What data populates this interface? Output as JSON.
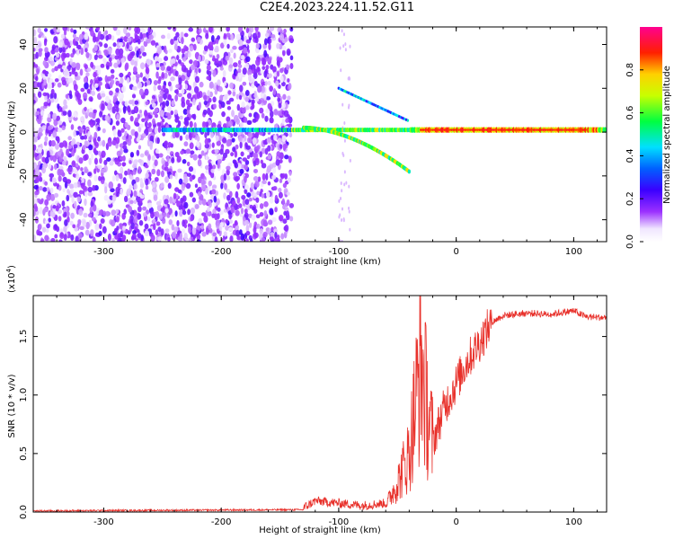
{
  "title": "C2E4.2023.224.11.52.G11",
  "chart_data": [
    {
      "type": "heatmap",
      "xlabel": "Height of straight line (km)",
      "ylabel": "Frequency (Hz)",
      "xlim": [
        -360,
        128
      ],
      "ylim": [
        -50,
        48
      ],
      "xticks": [
        -300,
        -200,
        -100,
        0,
        100
      ],
      "yticks": [
        -40,
        -20,
        0,
        20,
        40
      ],
      "colorbar": {
        "label": "Normalized spectral amplitude",
        "range": [
          0.0,
          1.0
        ],
        "ticks": [
          "0.0",
          "0.2",
          "0.4",
          "0.6",
          "0.8"
        ],
        "colormap": "rainbow (white-violet-blue-cyan-green-yellow-red-pink)"
      },
      "features": [
        {
          "name": "noise band",
          "x_range": [
            -360,
            -140
          ],
          "amplitude": 0.1
        },
        {
          "name": "carrier line",
          "x_range": [
            -250,
            128
          ],
          "frequency": 1,
          "amplitude": [
            0.5,
            0.95
          ]
        },
        {
          "name": "descending branch",
          "x_range": [
            -130,
            -40
          ],
          "frequency": [
            2,
            -18
          ],
          "amplitude": 0.6
        },
        {
          "name": "ascending branch",
          "x_range": [
            -100,
            -40
          ],
          "frequency": [
            20,
            5
          ],
          "amplitude": 0.3
        }
      ]
    },
    {
      "type": "line",
      "xlabel": "Height of straight line (km)",
      "ylabel": "SNR (10 * v/v)",
      "yscale_label": "(x10",
      "yscale_exp": "4",
      "yscale_close": ")",
      "xlim": [
        -360,
        128
      ],
      "ylim": [
        0.0,
        1.85
      ],
      "xticks": [
        -300,
        -200,
        -100,
        0,
        100
      ],
      "yticks": [
        "0.0",
        "0.5",
        "1.0",
        "1.5"
      ],
      "color": "#e8302a",
      "series_points": [
        [
          -360,
          0.01
        ],
        [
          -130,
          0.02
        ],
        [
          -120,
          0.08
        ],
        [
          -100,
          0.06
        ],
        [
          -80,
          0.04
        ],
        [
          -60,
          0.06
        ],
        [
          -50,
          0.25
        ],
        [
          -40,
          0.5
        ],
        [
          -30,
          1.3
        ],
        [
          -25,
          0.9
        ],
        [
          -20,
          0.6
        ],
        [
          -10,
          0.9
        ],
        [
          0,
          1.1
        ],
        [
          10,
          1.3
        ],
        [
          20,
          1.45
        ],
        [
          30,
          1.62
        ],
        [
          40,
          1.68
        ],
        [
          60,
          1.7
        ],
        [
          80,
          1.69
        ],
        [
          100,
          1.72
        ],
        [
          110,
          1.67
        ],
        [
          128,
          1.66
        ]
      ]
    }
  ]
}
